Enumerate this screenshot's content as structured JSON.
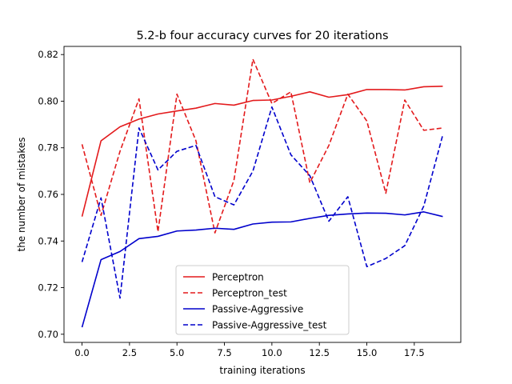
{
  "chart_data": {
    "type": "line",
    "title": "5.2-b four accuracy curves for 20 iterations",
    "xlabel": "training iterations",
    "ylabel": "the number of mistakes",
    "xlim": [
      -0.95,
      19.95
    ],
    "ylim": [
      0.6965,
      0.8235
    ],
    "x_ticks": [
      0,
      2.5,
      5,
      7.5,
      10,
      12.5,
      15,
      17.5
    ],
    "x_tick_labels": [
      "0.0",
      "2.5",
      "5.0",
      "7.5",
      "10.0",
      "12.5",
      "15.0",
      "17.5"
    ],
    "y_ticks": [
      0.7,
      0.72,
      0.74,
      0.76,
      0.78,
      0.8,
      0.82
    ],
    "y_tick_labels": [
      "0.70",
      "0.72",
      "0.74",
      "0.76",
      "0.78",
      "0.80",
      "0.82"
    ],
    "grid": false,
    "legend_position": "bottom-center",
    "x": [
      0,
      1,
      2,
      3,
      4,
      5,
      6,
      7,
      8,
      9,
      10,
      11,
      12,
      13,
      14,
      15,
      16,
      17,
      18,
      19
    ],
    "series": [
      {
        "name": "Perceptron",
        "color": "#e31a1c",
        "style": "solid",
        "values": [
          0.7505,
          0.783,
          0.789,
          0.7923,
          0.7945,
          0.7958,
          0.797,
          0.799,
          0.7983,
          0.8003,
          0.8005,
          0.8021,
          0.804,
          0.8017,
          0.8028,
          0.805,
          0.805,
          0.8048,
          0.8062,
          0.8064
        ]
      },
      {
        "name": "Perceptron_test",
        "color": "#e31a1c",
        "style": "dashed",
        "values": [
          0.7815,
          0.751,
          0.7785,
          0.801,
          0.744,
          0.803,
          0.783,
          0.7435,
          0.766,
          0.818,
          0.799,
          0.804,
          0.765,
          0.781,
          0.803,
          0.7915,
          0.7605,
          0.8005,
          0.7875,
          0.7885
        ]
      },
      {
        "name": "Passive-Aggressive",
        "color": "#0000cc",
        "style": "solid",
        "values": [
          0.703,
          0.732,
          0.7355,
          0.741,
          0.742,
          0.7443,
          0.7447,
          0.7455,
          0.745,
          0.7473,
          0.7481,
          0.7482,
          0.7497,
          0.751,
          0.7516,
          0.752,
          0.7519,
          0.7512,
          0.7525,
          0.7505
        ]
      },
      {
        "name": "Passive-Aggressive_test",
        "color": "#0000cc",
        "style": "dashed",
        "values": [
          0.731,
          0.7585,
          0.7155,
          0.7885,
          0.7705,
          0.7785,
          0.781,
          0.759,
          0.7555,
          0.77,
          0.7975,
          0.777,
          0.768,
          0.7485,
          0.759,
          0.729,
          0.7325,
          0.738,
          0.755,
          0.7855
        ]
      }
    ]
  }
}
